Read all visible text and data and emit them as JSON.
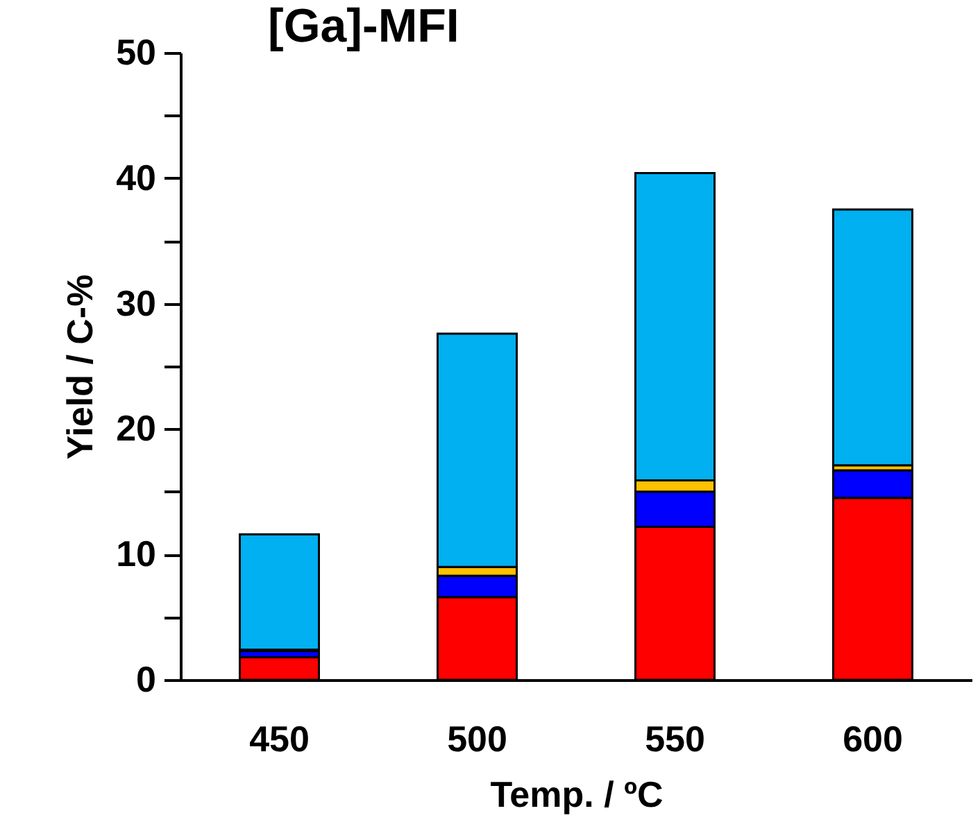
{
  "chart_data": {
    "type": "bar",
    "title": "[Ga]-MFI",
    "xlabel": "Temp. / ºC",
    "ylabel": "Yield / C-%",
    "categories": [
      "450",
      "500",
      "550",
      "600"
    ],
    "stacked": true,
    "series": [
      {
        "color": "#ff0000",
        "values": [
          1.8,
          6.6,
          12.2,
          14.5
        ]
      },
      {
        "color": "#0000ff",
        "values": [
          0.5,
          1.7,
          2.8,
          2.2
        ]
      },
      {
        "color": "#ffc000",
        "values": [
          0.1,
          0.7,
          0.9,
          0.4
        ]
      },
      {
        "color": "#00b0f0",
        "values": [
          9.2,
          18.6,
          24.5,
          20.4
        ]
      }
    ],
    "ylim": [
      0,
      50
    ],
    "yticks": [
      0,
      {
        "value": 5,
        "label": null
      },
      10,
      {
        "value": 15,
        "label": null
      },
      20,
      {
        "value": 25,
        "label": null
      },
      30,
      {
        "value": 35,
        "label": null
      },
      40,
      {
        "value": 45,
        "label": null
      },
      50
    ],
    "grid": false,
    "legend": false
  }
}
